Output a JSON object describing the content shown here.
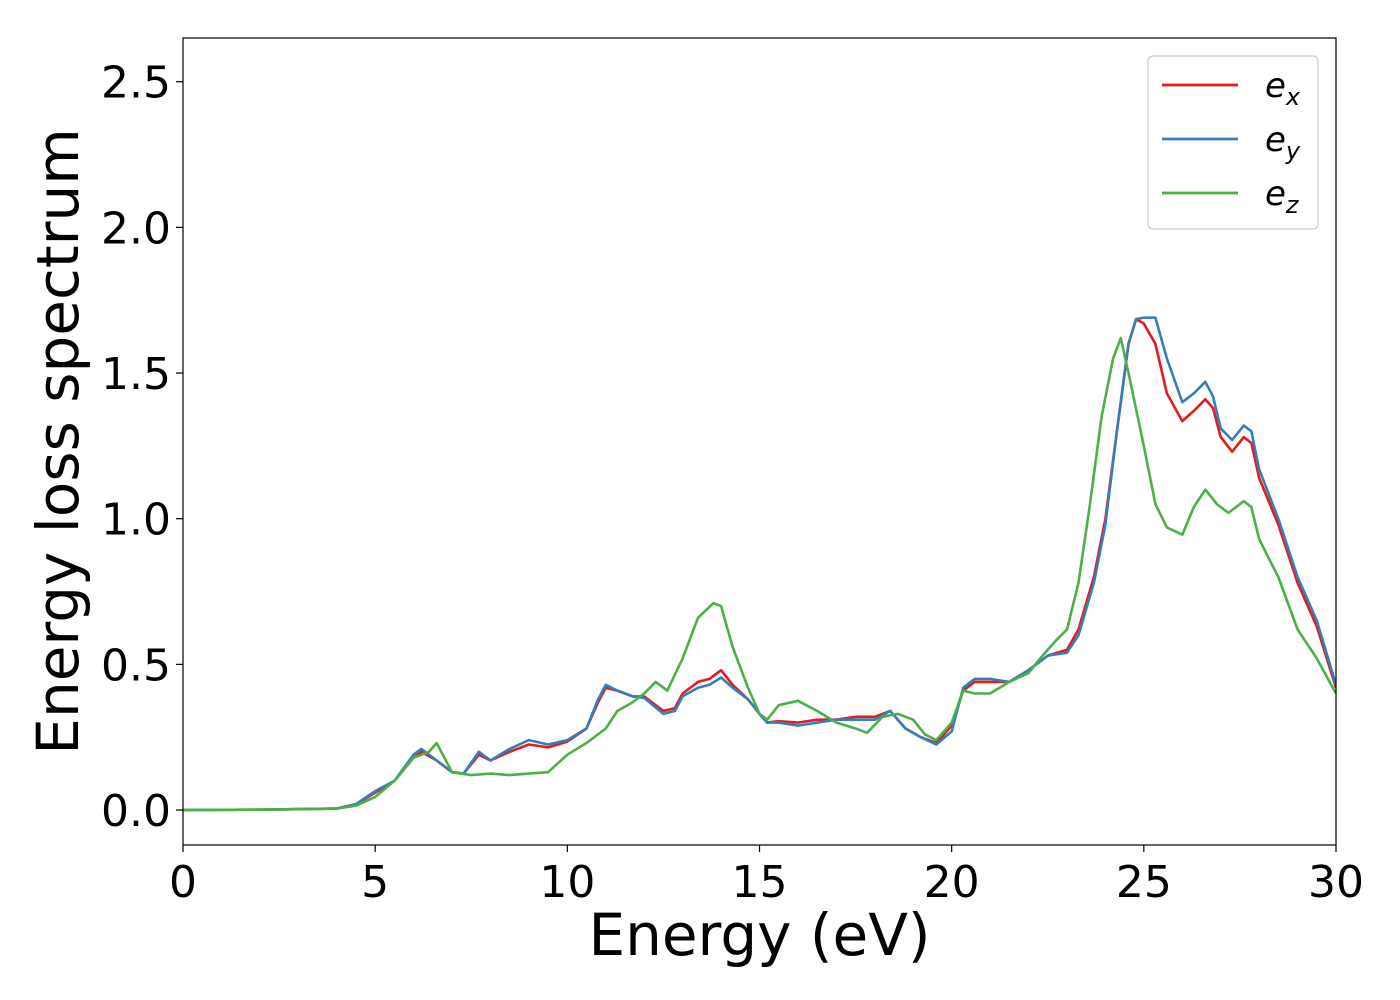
{
  "chart_data": {
    "type": "line",
    "title": "",
    "xlabel": "Energy (eV)",
    "ylabel": "Energy loss spectrum",
    "xlim": [
      0,
      30
    ],
    "ylim": [
      -0.12,
      2.65
    ],
    "xticks": [
      0,
      5,
      10,
      15,
      20,
      25,
      30
    ],
    "xtick_labels": [
      "0",
      "5",
      "10",
      "15",
      "20",
      "25",
      "30"
    ],
    "yticks": [
      0.0,
      0.5,
      1.0,
      1.5,
      2.0,
      2.5
    ],
    "ytick_labels": [
      "0.0",
      "0.5",
      "1.0",
      "1.5",
      "2.0",
      "2.5"
    ],
    "grid": false,
    "legend_position": "top-right",
    "series": [
      {
        "name": "e_x",
        "name_base": "e",
        "name_sub": "x",
        "color": "#e41a1c",
        "points": [
          [
            0,
            0
          ],
          [
            2,
            0.001
          ],
          [
            4,
            0.005
          ],
          [
            4.5,
            0.02
          ],
          [
            5,
            0.06
          ],
          [
            5.5,
            0.1
          ],
          [
            6,
            0.18
          ],
          [
            6.2,
            0.2
          ],
          [
            6.6,
            0.17
          ],
          [
            7,
            0.13
          ],
          [
            7.3,
            0.125
          ],
          [
            7.7,
            0.19
          ],
          [
            8,
            0.17
          ],
          [
            8.5,
            0.2
          ],
          [
            9,
            0.225
          ],
          [
            9.5,
            0.215
          ],
          [
            10,
            0.235
          ],
          [
            10.5,
            0.28
          ],
          [
            10.8,
            0.37
          ],
          [
            11,
            0.42
          ],
          [
            11.3,
            0.41
          ],
          [
            11.7,
            0.39
          ],
          [
            12,
            0.39
          ],
          [
            12.5,
            0.34
          ],
          [
            12.8,
            0.35
          ],
          [
            13,
            0.4
          ],
          [
            13.4,
            0.44
          ],
          [
            13.7,
            0.45
          ],
          [
            14,
            0.48
          ],
          [
            14.3,
            0.43
          ],
          [
            14.7,
            0.38
          ],
          [
            15,
            0.33
          ],
          [
            15.2,
            0.3
          ],
          [
            15.5,
            0.305
          ],
          [
            16,
            0.3
          ],
          [
            16.5,
            0.31
          ],
          [
            17,
            0.31
          ],
          [
            17.5,
            0.32
          ],
          [
            18,
            0.32
          ],
          [
            18.4,
            0.34
          ],
          [
            18.8,
            0.28
          ],
          [
            19.2,
            0.25
          ],
          [
            19.6,
            0.23
          ],
          [
            20,
            0.29
          ],
          [
            20.3,
            0.41
          ],
          [
            20.6,
            0.44
          ],
          [
            21,
            0.44
          ],
          [
            21.5,
            0.44
          ],
          [
            22,
            0.48
          ],
          [
            22.5,
            0.53
          ],
          [
            23,
            0.55
          ],
          [
            23.3,
            0.62
          ],
          [
            23.7,
            0.8
          ],
          [
            24,
            1.0
          ],
          [
            24.3,
            1.3
          ],
          [
            24.6,
            1.6
          ],
          [
            24.8,
            1.685
          ],
          [
            25,
            1.67
          ],
          [
            25.3,
            1.6
          ],
          [
            25.6,
            1.43
          ],
          [
            26,
            1.335
          ],
          [
            26.3,
            1.37
          ],
          [
            26.6,
            1.41
          ],
          [
            26.8,
            1.38
          ],
          [
            27,
            1.28
          ],
          [
            27.3,
            1.23
          ],
          [
            27.6,
            1.28
          ],
          [
            27.8,
            1.26
          ],
          [
            28,
            1.14
          ],
          [
            28.5,
            0.98
          ],
          [
            29,
            0.78
          ],
          [
            29.5,
            0.63
          ],
          [
            30,
            0.42
          ]
        ]
      },
      {
        "name": "e_y",
        "name_base": "e",
        "name_sub": "y",
        "color": "#377eb8",
        "points": [
          [
            0,
            0
          ],
          [
            2,
            0.001
          ],
          [
            4,
            0.005
          ],
          [
            4.5,
            0.02
          ],
          [
            5,
            0.065
          ],
          [
            5.5,
            0.1
          ],
          [
            6,
            0.19
          ],
          [
            6.2,
            0.21
          ],
          [
            6.6,
            0.17
          ],
          [
            7,
            0.13
          ],
          [
            7.3,
            0.125
          ],
          [
            7.7,
            0.2
          ],
          [
            8,
            0.17
          ],
          [
            8.5,
            0.21
          ],
          [
            9,
            0.24
          ],
          [
            9.5,
            0.225
          ],
          [
            10,
            0.24
          ],
          [
            10.5,
            0.28
          ],
          [
            10.8,
            0.38
          ],
          [
            11,
            0.43
          ],
          [
            11.3,
            0.41
          ],
          [
            11.7,
            0.39
          ],
          [
            12,
            0.385
          ],
          [
            12.5,
            0.33
          ],
          [
            12.8,
            0.34
          ],
          [
            13,
            0.39
          ],
          [
            13.4,
            0.42
          ],
          [
            13.7,
            0.43
          ],
          [
            14,
            0.455
          ],
          [
            14.3,
            0.42
          ],
          [
            14.7,
            0.38
          ],
          [
            15,
            0.33
          ],
          [
            15.2,
            0.3
          ],
          [
            15.5,
            0.3
          ],
          [
            16,
            0.29
          ],
          [
            16.5,
            0.3
          ],
          [
            17,
            0.31
          ],
          [
            17.5,
            0.31
          ],
          [
            18,
            0.31
          ],
          [
            18.4,
            0.34
          ],
          [
            18.8,
            0.28
          ],
          [
            19.2,
            0.25
          ],
          [
            19.6,
            0.225
          ],
          [
            20,
            0.27
          ],
          [
            20.3,
            0.42
          ],
          [
            20.6,
            0.45
          ],
          [
            21,
            0.45
          ],
          [
            21.5,
            0.44
          ],
          [
            22,
            0.48
          ],
          [
            22.5,
            0.53
          ],
          [
            23,
            0.54
          ],
          [
            23.3,
            0.6
          ],
          [
            23.7,
            0.78
          ],
          [
            24,
            0.98
          ],
          [
            24.3,
            1.3
          ],
          [
            24.6,
            1.6
          ],
          [
            24.8,
            1.685
          ],
          [
            25,
            1.69
          ],
          [
            25.3,
            1.69
          ],
          [
            25.6,
            1.55
          ],
          [
            26,
            1.4
          ],
          [
            26.3,
            1.43
          ],
          [
            26.6,
            1.47
          ],
          [
            26.8,
            1.42
          ],
          [
            27,
            1.31
          ],
          [
            27.3,
            1.27
          ],
          [
            27.6,
            1.32
          ],
          [
            27.8,
            1.3
          ],
          [
            28,
            1.17
          ],
          [
            28.5,
            1.0
          ],
          [
            29,
            0.8
          ],
          [
            29.5,
            0.65
          ],
          [
            30,
            0.43
          ]
        ]
      },
      {
        "name": "e_z",
        "name_base": "e",
        "name_sub": "z",
        "color": "#4daf4a",
        "points": [
          [
            0,
            0
          ],
          [
            2,
            0.001
          ],
          [
            4,
            0.005
          ],
          [
            4.5,
            0.015
          ],
          [
            5,
            0.045
          ],
          [
            5.5,
            0.1
          ],
          [
            6,
            0.18
          ],
          [
            6.4,
            0.2
          ],
          [
            6.6,
            0.23
          ],
          [
            7,
            0.13
          ],
          [
            7.5,
            0.12
          ],
          [
            8,
            0.125
          ],
          [
            8.5,
            0.12
          ],
          [
            9,
            0.125
          ],
          [
            9.5,
            0.13
          ],
          [
            10,
            0.19
          ],
          [
            10.5,
            0.23
          ],
          [
            11,
            0.28
          ],
          [
            11.3,
            0.34
          ],
          [
            11.7,
            0.37
          ],
          [
            12,
            0.4
          ],
          [
            12.3,
            0.44
          ],
          [
            12.6,
            0.41
          ],
          [
            13,
            0.52
          ],
          [
            13.4,
            0.66
          ],
          [
            13.8,
            0.71
          ],
          [
            14,
            0.7
          ],
          [
            14.3,
            0.56
          ],
          [
            14.7,
            0.42
          ],
          [
            15,
            0.33
          ],
          [
            15.2,
            0.31
          ],
          [
            15.5,
            0.36
          ],
          [
            16,
            0.375
          ],
          [
            16.5,
            0.34
          ],
          [
            17,
            0.3
          ],
          [
            17.5,
            0.28
          ],
          [
            17.8,
            0.265
          ],
          [
            18.2,
            0.32
          ],
          [
            18.6,
            0.33
          ],
          [
            19,
            0.31
          ],
          [
            19.3,
            0.26
          ],
          [
            19.6,
            0.24
          ],
          [
            20,
            0.3
          ],
          [
            20.3,
            0.41
          ],
          [
            20.6,
            0.4
          ],
          [
            21,
            0.4
          ],
          [
            21.5,
            0.44
          ],
          [
            22,
            0.47
          ],
          [
            22.3,
            0.52
          ],
          [
            22.7,
            0.58
          ],
          [
            23,
            0.62
          ],
          [
            23.3,
            0.78
          ],
          [
            23.6,
            1.05
          ],
          [
            23.9,
            1.35
          ],
          [
            24.2,
            1.55
          ],
          [
            24.4,
            1.62
          ],
          [
            24.6,
            1.5
          ],
          [
            25,
            1.25
          ],
          [
            25.3,
            1.05
          ],
          [
            25.6,
            0.97
          ],
          [
            26,
            0.945
          ],
          [
            26.3,
            1.04
          ],
          [
            26.6,
            1.1
          ],
          [
            26.9,
            1.05
          ],
          [
            27.2,
            1.02
          ],
          [
            27.6,
            1.06
          ],
          [
            27.8,
            1.04
          ],
          [
            28,
            0.93
          ],
          [
            28.5,
            0.8
          ],
          [
            29,
            0.62
          ],
          [
            29.5,
            0.52
          ],
          [
            30,
            0.4
          ]
        ]
      }
    ]
  }
}
